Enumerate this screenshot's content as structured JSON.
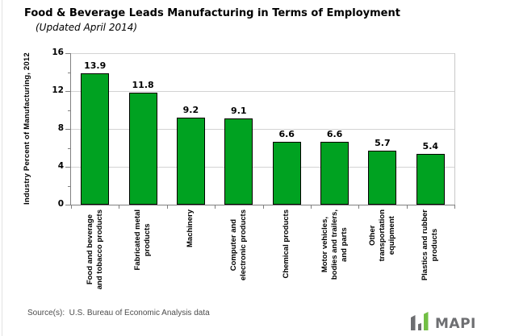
{
  "header": {
    "title": "Food & Beverage Leads Manufacturing in Terms of Employment",
    "subtitle": "(Updated April 2014)"
  },
  "chart_data": {
    "type": "bar",
    "title": "Food & Beverage Leads Manufacturing in Terms of Employment",
    "subtitle": "(Updated April 2014)",
    "ylabel": "Industry Percent of Manufacturing,  2012",
    "xlabel": "",
    "ylim": [
      0,
      16
    ],
    "yticks": [
      0,
      4,
      8,
      12,
      16
    ],
    "minor_tick_step": 2,
    "grid": true,
    "legend": false,
    "categories": [
      "Food and beverage and tobacco products",
      "Fabricated metal products",
      "Machinery",
      "Computer and electronic products",
      "Chemical products",
      "Motor vehicles, bodies and trailers, and parts",
      "Other transportation equipment",
      "Plastics and rubber products"
    ],
    "category_lines": [
      [
        "Food and beverage",
        "and tobacco products"
      ],
      [
        "Fabricated metal",
        "products"
      ],
      [
        "Machinery"
      ],
      [
        "Computer and",
        "electronic products"
      ],
      [
        "Chemical products"
      ],
      [
        "Motor vehicles,",
        "bodies and trailers,",
        "and parts"
      ],
      [
        "Other",
        "transportation",
        "equipment"
      ],
      [
        "Plastics and rubber",
        "products"
      ]
    ],
    "values": [
      13.9,
      11.8,
      9.2,
      9.1,
      6.6,
      6.6,
      5.7,
      5.4
    ],
    "value_labels": [
      "13.9",
      "11.8",
      "9.2",
      "9.1",
      "6.6",
      "6.6",
      "5.7",
      "5.4"
    ],
    "colors": {
      "bar_fill": "#00a221",
      "bar_border": "#000000",
      "gridline": "#d3d3d3",
      "axis": "#808080",
      "plot_border": "#c8c8c8",
      "label": "#000000"
    }
  },
  "footer": {
    "source": "Source(s):  U.S. Bureau of Economic Analysis data"
  },
  "logo": {
    "text": "MAPI",
    "icon": "bar-chart-logo-icon",
    "colors": {
      "gray": "#6d6e71",
      "green": "#72bf44"
    }
  }
}
